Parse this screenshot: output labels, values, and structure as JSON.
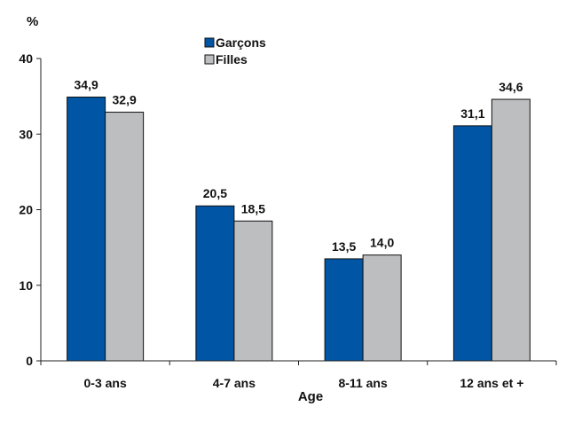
{
  "chart_data": {
    "type": "bar",
    "categories": [
      "0-3 ans",
      "4-7 ans",
      "8-11 ans",
      "12 ans et +"
    ],
    "series": [
      {
        "name": "Garçons",
        "color": "#0055a5",
        "values": [
          34.9,
          20.5,
          13.5,
          31.1
        ],
        "labels": [
          "34,9",
          "20,5",
          "13,5",
          "31,1"
        ]
      },
      {
        "name": "Filles",
        "color": "#bcbec0",
        "values": [
          32.9,
          18.5,
          14.0,
          34.6
        ],
        "labels": [
          "32,9",
          "18,5",
          "14,0",
          "34,6"
        ]
      }
    ],
    "ylabel": "%",
    "xlabel": "Age",
    "ylim": [
      0,
      40
    ],
    "yticks": [
      0,
      10,
      20,
      30,
      40
    ],
    "grid": false,
    "legend_position": "top-center"
  }
}
